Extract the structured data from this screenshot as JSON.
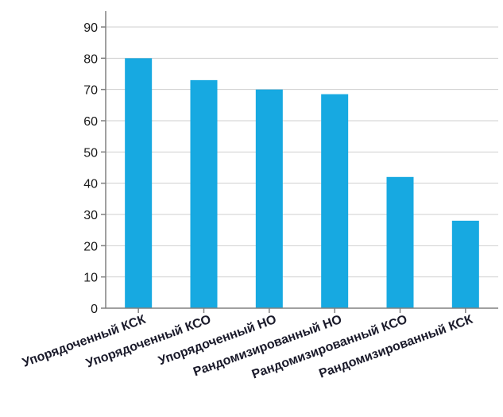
{
  "chart_data": {
    "type": "bar",
    "title": "",
    "xlabel": "",
    "ylabel": "",
    "categories": [
      "Упорядоченный КСК",
      "Упорядоченный КСО",
      "Упорядоченный НО",
      "Рандомизированный НО",
      "Рандомизированный КСО",
      "Рандомизированный КСК"
    ],
    "values": [
      80,
      73,
      70,
      68.5,
      42,
      28
    ],
    "ylim": [
      0,
      90
    ],
    "yticks": [
      0,
      10,
      20,
      30,
      40,
      50,
      60,
      70,
      80,
      90
    ],
    "grid": true,
    "bar_color": "#17a9e1",
    "grid_color": "#cfcfcf",
    "axis_color": "#808080"
  }
}
